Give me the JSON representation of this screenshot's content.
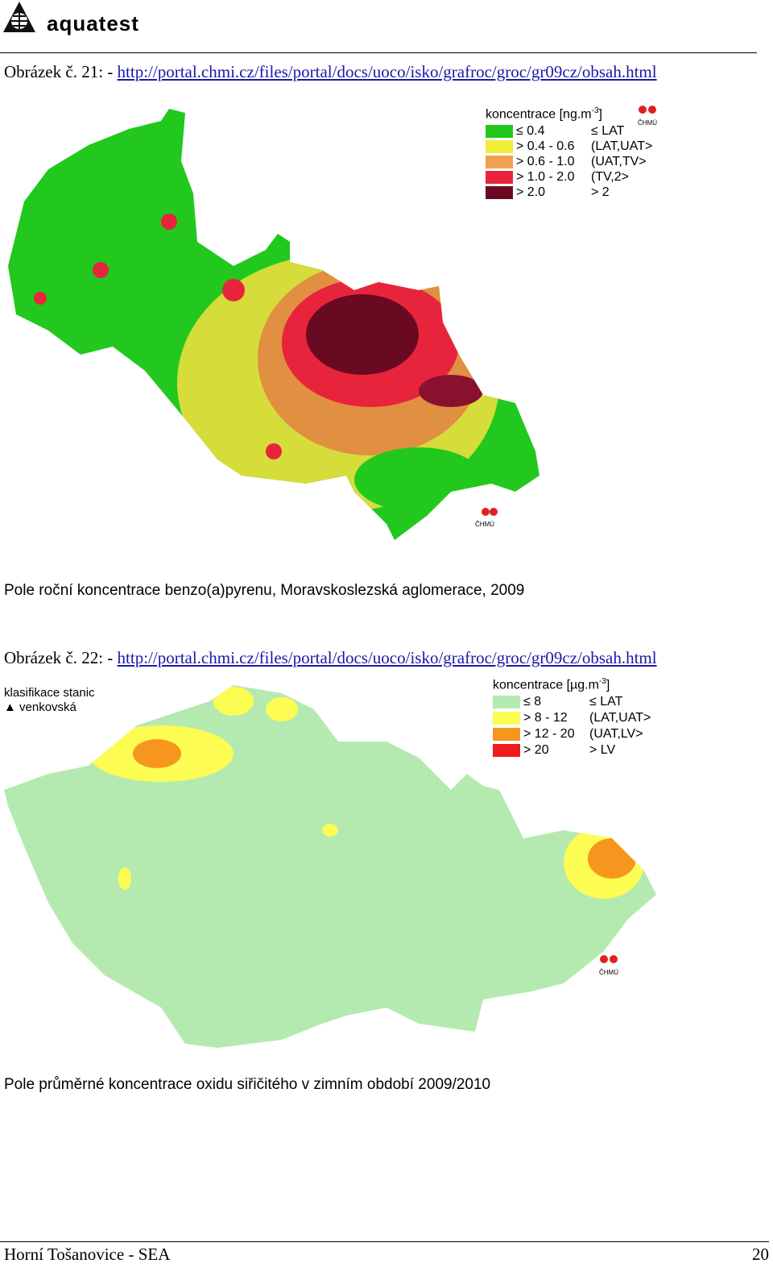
{
  "header": {
    "logo": "aquatest"
  },
  "figures": [
    {
      "caption_prefix": "Obrázek č. 21: - ",
      "link": "http://portal.chmi.cz/files/portal/docs/uoco/isko/grafroc/groc/gr09cz/obsah.html",
      "legend": {
        "title": "koncentrace [ng.m",
        "title_sup": "-3",
        "title_end": "]",
        "items": [
          {
            "label": "≤ 0.4",
            "class": "≤ LAT",
            "color": "#22c81e"
          },
          {
            "label": "> 0.4 - 0.6",
            "class": "(LAT,UAT>",
            "color": "#eeee3a"
          },
          {
            "label": "> 0.6 - 1.0",
            "class": "(UAT,TV>",
            "color": "#f0a050"
          },
          {
            "label": "> 1.0 - 2.0",
            "class": "(TV,2>",
            "color": "#e8243c"
          },
          {
            "label": "> 2.0",
            "class": "> 2",
            "color": "#6a0a22"
          }
        ]
      },
      "logo_text": "ČHMÚ",
      "caption": "Pole roční koncentrace benzo(a)pyrenu, Moravskoslezská aglomerace, 2009"
    },
    {
      "caption_prefix": "Obrázek č. 22: - ",
      "link": "http://portal.chmi.cz/files/portal/docs/uoco/isko/grafroc/groc/gr09cz/obsah.html",
      "station_title": "klasifikace stanic",
      "station_class": "venkovská",
      "legend": {
        "title": "koncentrace [µg.m",
        "title_sup": "-3",
        "title_end": "]",
        "items": [
          {
            "label": "≤ 8",
            "class": "≤ LAT",
            "color": "#b4eab0"
          },
          {
            "label": "> 8 - 12",
            "class": "(LAT,UAT>",
            "color": "#fcfc52"
          },
          {
            "label": "> 12 - 20",
            "class": "(UAT,LV>",
            "color": "#f7961e"
          },
          {
            "label": "> 20",
            "class": "> LV",
            "color": "#f01c1c"
          }
        ]
      },
      "logo_text": "ČHMÚ",
      "caption": "Pole průměrné koncentrace oxidu siřičitého v zimním období 2009/2010"
    }
  ],
  "footer": {
    "left": "Horní Tošanovice - SEA",
    "page": "20"
  }
}
